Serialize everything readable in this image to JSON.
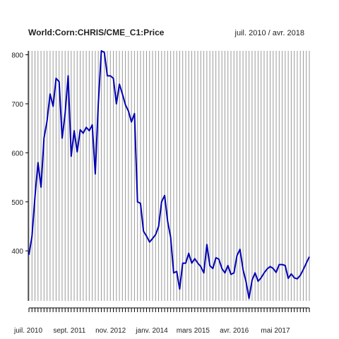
{
  "chart_data": {
    "type": "line",
    "title": "World:Corn:CHRIS/CME_C1:Price",
    "date_range": "juil. 2010 / avr. 2018",
    "x_tick_labels": [
      "juil. 2010",
      "sept. 2011",
      "nov. 2012",
      "janv. 2014",
      "mars 2015",
      "avr. 2016",
      "mai 2017"
    ],
    "y_tick_labels": [
      "400",
      "500",
      "600",
      "700",
      "800"
    ],
    "ylim": [
      298,
      808
    ],
    "xlim": [
      "2010-07",
      "2018-04"
    ],
    "grid": true,
    "colors": {
      "line": "#0000b4",
      "grid": "#999999",
      "axis": "#000000"
    },
    "series": [
      {
        "x": [
          "2010-07",
          "2010-08",
          "2010-09",
          "2010-10",
          "2010-11",
          "2010-12",
          "2011-01",
          "2011-02",
          "2011-03",
          "2011-04",
          "2011-05",
          "2011-06",
          "2011-07",
          "2011-08",
          "2011-09",
          "2011-10",
          "2011-11",
          "2011-12",
          "2012-01",
          "2012-02",
          "2012-03",
          "2012-04",
          "2012-05",
          "2012-06",
          "2012-07",
          "2012-08",
          "2012-09",
          "2012-10",
          "2012-11",
          "2012-12",
          "2013-01",
          "2013-02",
          "2013-03",
          "2013-04",
          "2013-05",
          "2013-06",
          "2013-07",
          "2013-08",
          "2013-09",
          "2013-10",
          "2013-11",
          "2013-12",
          "2014-01",
          "2014-02",
          "2014-03",
          "2014-04",
          "2014-05",
          "2014-06",
          "2014-07",
          "2014-08",
          "2014-09",
          "2014-10",
          "2014-11",
          "2014-12",
          "2015-01",
          "2015-02",
          "2015-03",
          "2015-04",
          "2015-05",
          "2015-06",
          "2015-07",
          "2015-08",
          "2015-09",
          "2015-10",
          "2015-11",
          "2015-12",
          "2016-01",
          "2016-02",
          "2016-03",
          "2016-04",
          "2016-05",
          "2016-06",
          "2016-07",
          "2016-08",
          "2016-09",
          "2016-10",
          "2016-11",
          "2016-12",
          "2017-01",
          "2017-02",
          "2017-03",
          "2017-04",
          "2017-05",
          "2017-06",
          "2017-07",
          "2017-08",
          "2017-09",
          "2017-10",
          "2017-11",
          "2017-12",
          "2018-01",
          "2018-02",
          "2018-03",
          "2018-04"
        ],
        "values": [
          392,
          430,
          510,
          580,
          530,
          630,
          665,
          720,
          695,
          752,
          745,
          630,
          680,
          757,
          593,
          645,
          602,
          647,
          640,
          652,
          645,
          657,
          557,
          700,
          808,
          805,
          757,
          757,
          752,
          700,
          740,
          720,
          698,
          685,
          663,
          680,
          500,
          497,
          440,
          430,
          418,
          425,
          433,
          450,
          500,
          513,
          460,
          428,
          355,
          358,
          322,
          375,
          375,
          395,
          375,
          384,
          375,
          368,
          355,
          413,
          370,
          364,
          386,
          383,
          364,
          355,
          370,
          352,
          355,
          390,
          403,
          362,
          337,
          303,
          340,
          355,
          338,
          345,
          355,
          363,
          368,
          364,
          356,
          372,
          372,
          370,
          344,
          353,
          345,
          343,
          350,
          362,
          375,
          388
        ]
      }
    ]
  }
}
